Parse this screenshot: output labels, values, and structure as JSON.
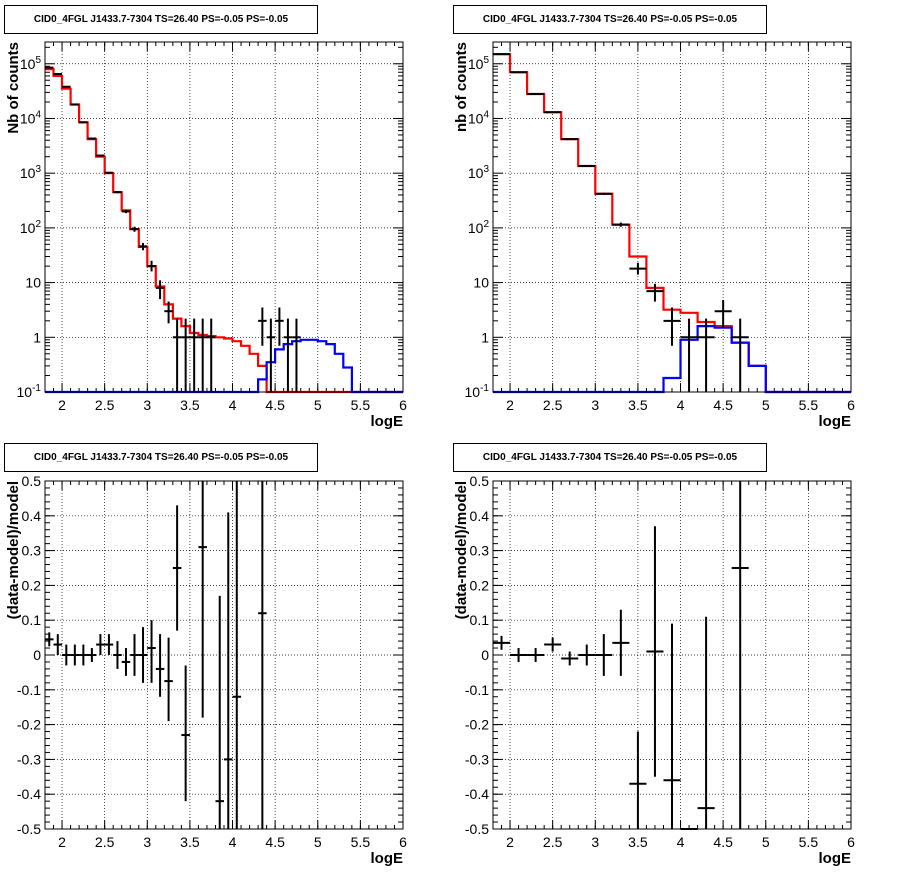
{
  "panel_title": "CID0_4FGL J1433.7-7304 TS=26.40 PS=-0.05 PS=-0.05",
  "colors": {
    "model": "#ff0000",
    "source": "#0000ff",
    "data": "#000000",
    "grid": "#000000"
  },
  "chart_data": [
    {
      "type": "line",
      "title": "CID0_4FGL J1433.7-7304 TS=26.40 PS=-0.05 PS=-0.05",
      "xlabel": "logE",
      "ylabel": "Nb of counts",
      "xlim": [
        1.8,
        6.0
      ],
      "ylim": [
        0.1,
        250000
      ],
      "log_y": true,
      "grid": true,
      "x_ticks": [
        "2",
        "2.5",
        "3",
        "3.5",
        "4",
        "4.5",
        "5",
        "5.5",
        "6"
      ],
      "y_ticks": [
        "10^-1",
        "1",
        "10",
        "10^2",
        "10^3",
        "10^4",
        "10^5"
      ],
      "bin_edges": [
        1.8,
        1.9,
        2.0,
        2.1,
        2.2,
        2.3,
        2.4,
        2.5,
        2.6,
        2.7,
        2.8,
        2.9,
        3.0,
        3.1,
        3.2,
        3.3,
        3.4,
        3.5,
        3.6,
        3.7,
        3.8,
        3.9,
        4.0,
        4.1,
        4.2,
        4.3,
        4.4,
        4.5,
        4.6,
        4.7,
        4.8,
        4.9,
        5.0,
        5.1,
        5.2,
        5.3,
        5.4,
        5.5,
        5.6,
        5.7,
        5.8,
        5.9,
        6.0
      ],
      "series": [
        {
          "name": "model",
          "style": "step",
          "values": [
            80000,
            60000,
            35000,
            18000,
            8500,
            4200,
            2000,
            1000,
            450,
            210,
            95,
            45,
            20,
            8.5,
            4,
            2.2,
            1.6,
            1.2,
            1.1,
            1.05,
            1.0,
            0.95,
            0.85,
            0.7,
            0.5,
            0.3,
            0.1,
            0.1,
            0.1,
            0.1,
            0.1,
            0.1,
            0.1,
            0.1,
            0.1,
            0.1,
            0.1,
            0.1,
            0.1,
            0.1,
            0.1,
            0.1
          ]
        },
        {
          "name": "source",
          "style": "step",
          "values": [
            0.1,
            0.1,
            0.1,
            0.1,
            0.1,
            0.1,
            0.1,
            0.1,
            0.1,
            0.1,
            0.1,
            0.1,
            0.1,
            0.1,
            0.1,
            0.1,
            0.1,
            0.1,
            0.1,
            0.1,
            0.1,
            0.1,
            0.1,
            0.1,
            0.1,
            0.17,
            0.35,
            0.6,
            0.75,
            0.85,
            0.9,
            0.9,
            0.85,
            0.75,
            0.5,
            0.28,
            0.1,
            0.1,
            0.1,
            0.1,
            0.1,
            0.1
          ]
        },
        {
          "name": "data",
          "style": "errorbar",
          "points": [
            {
              "x": 1.85,
              "y": 85000,
              "lo": 84500,
              "hi": 85500
            },
            {
              "x": 1.95,
              "y": 65000,
              "lo": 64500,
              "hi": 65500
            },
            {
              "x": 2.05,
              "y": 38000,
              "lo": 37500,
              "hi": 38500
            },
            {
              "x": 2.15,
              "y": 18000,
              "lo": 17700,
              "hi": 18300
            },
            {
              "x": 2.25,
              "y": 8500,
              "lo": 8300,
              "hi": 8700
            },
            {
              "x": 2.35,
              "y": 4300,
              "lo": 4200,
              "hi": 4400
            },
            {
              "x": 2.45,
              "y": 2100,
              "lo": 2050,
              "hi": 2150
            },
            {
              "x": 2.55,
              "y": 1020,
              "lo": 990,
              "hi": 1050
            },
            {
              "x": 2.65,
              "y": 450,
              "lo": 430,
              "hi": 470
            },
            {
              "x": 2.75,
              "y": 200,
              "lo": 186,
              "hi": 214
            },
            {
              "x": 2.85,
              "y": 95,
              "lo": 85,
              "hi": 105
            },
            {
              "x": 2.95,
              "y": 46,
              "lo": 39,
              "hi": 53
            },
            {
              "x": 3.05,
              "y": 20,
              "lo": 16,
              "hi": 25
            },
            {
              "x": 3.15,
              "y": 8,
              "lo": 5,
              "hi": 11
            },
            {
              "x": 3.25,
              "y": 3,
              "lo": 1.8,
              "hi": 4.5
            },
            {
              "x": 3.35,
              "y": 1,
              "lo": 0.1,
              "hi": 2.2
            },
            {
              "x": 3.45,
              "y": 1,
              "lo": 0.1,
              "hi": 2.2
            },
            {
              "x": 3.55,
              "y": 1,
              "lo": 0.1,
              "hi": 2.2
            },
            {
              "x": 3.65,
              "y": 1,
              "lo": 0.1,
              "hi": 2.2
            },
            {
              "x": 3.75,
              "y": 1,
              "lo": 0.1,
              "hi": 2.2
            },
            {
              "x": 4.35,
              "y": 2,
              "lo": 0.7,
              "hi": 3.5
            },
            {
              "x": 4.45,
              "y": 1,
              "lo": 0.1,
              "hi": 2.2
            },
            {
              "x": 4.55,
              "y": 2,
              "lo": 0.7,
              "hi": 3.5
            },
            {
              "x": 4.65,
              "y": 1,
              "lo": 0.1,
              "hi": 2.2
            },
            {
              "x": 4.75,
              "y": 1,
              "lo": 0.1,
              "hi": 2.2
            }
          ]
        }
      ]
    },
    {
      "type": "line",
      "title": "CID0_4FGL J1433.7-7304 TS=26.40 PS=-0.05 PS=-0.05",
      "xlabel": "logE",
      "ylabel": "nb of counts",
      "xlim": [
        1.8,
        6.0
      ],
      "ylim": [
        0.1,
        250000
      ],
      "log_y": true,
      "grid": true,
      "x_ticks": [
        "2",
        "2.5",
        "3",
        "3.5",
        "4",
        "4.5",
        "5",
        "5.5",
        "6"
      ],
      "y_ticks": [
        "10^-1",
        "1",
        "10",
        "10^2",
        "10^3",
        "10^4",
        "10^5"
      ],
      "bin_edges": [
        1.8,
        2.0,
        2.2,
        2.4,
        2.6,
        2.8,
        3.0,
        3.2,
        3.4,
        3.6,
        3.8,
        4.0,
        4.2,
        4.4,
        4.6,
        4.8,
        5.0,
        5.2,
        5.4,
        5.6,
        5.8,
        6.0
      ],
      "series": [
        {
          "name": "model",
          "style": "step",
          "values": [
            150000,
            70000,
            28000,
            13000,
            4200,
            1350,
            420,
            115,
            30,
            8,
            3.2,
            2.8,
            1.9,
            1.6,
            0.8,
            0.3,
            0.1,
            0.1,
            0.1,
            0.1,
            0.1
          ]
        },
        {
          "name": "source",
          "style": "step",
          "values": [
            0.1,
            0.1,
            0.1,
            0.1,
            0.1,
            0.1,
            0.1,
            0.1,
            0.1,
            0.1,
            0.18,
            0.9,
            1.6,
            1.5,
            0.8,
            0.3,
            0.1,
            0.1,
            0.1,
            0.1,
            0.1
          ]
        },
        {
          "name": "data",
          "style": "errorbar",
          "points": [
            {
              "x": 1.9,
              "y": 150000,
              "lo": 149000,
              "hi": 151000
            },
            {
              "x": 2.1,
              "y": 70000,
              "lo": 69500,
              "hi": 70500
            },
            {
              "x": 2.3,
              "y": 28000,
              "lo": 27700,
              "hi": 28300
            },
            {
              "x": 2.5,
              "y": 13000,
              "lo": 12800,
              "hi": 13200
            },
            {
              "x": 2.7,
              "y": 4200,
              "lo": 4100,
              "hi": 4300
            },
            {
              "x": 2.9,
              "y": 1350,
              "lo": 1310,
              "hi": 1390
            },
            {
              "x": 3.1,
              "y": 420,
              "lo": 400,
              "hi": 440
            },
            {
              "x": 3.3,
              "y": 115,
              "lo": 105,
              "hi": 125
            },
            {
              "x": 3.5,
              "y": 18,
              "lo": 14,
              "hi": 23
            },
            {
              "x": 3.7,
              "y": 7,
              "lo": 4.5,
              "hi": 9.5
            },
            {
              "x": 3.9,
              "y": 2,
              "lo": 0.7,
              "hi": 3.5
            },
            {
              "x": 4.1,
              "y": 1,
              "lo": 0.1,
              "hi": 2.2
            },
            {
              "x": 4.3,
              "y": 1,
              "lo": 0.1,
              "hi": 2.2
            },
            {
              "x": 4.5,
              "y": 3,
              "lo": 1.5,
              "hi": 4.8
            },
            {
              "x": 4.7,
              "y": 1,
              "lo": 0.1,
              "hi": 2.2
            }
          ]
        }
      ]
    },
    {
      "type": "scatter",
      "title": "CID0_4FGL J1433.7-7304 TS=26.40 PS=-0.05 PS=-0.05",
      "xlabel": "logE",
      "ylabel": "(data-model)/model",
      "xlim": [
        1.8,
        6.0
      ],
      "ylim": [
        -0.5,
        0.5
      ],
      "grid": true,
      "x_ticks": [
        "2",
        "2.5",
        "3",
        "3.5",
        "4",
        "4.5",
        "5",
        "5.5",
        "6"
      ],
      "y_ticks": [
        "-0.5",
        "-0.4",
        "-0.3",
        "-0.2",
        "-0.1",
        "0",
        "0.1",
        "0.2",
        "0.3",
        "0.4",
        "0.5"
      ],
      "points": [
        {
          "x": 1.85,
          "y": 0.045,
          "lo": 0.025,
          "hi": 0.065
        },
        {
          "x": 1.95,
          "y": 0.03,
          "lo": 0.0,
          "hi": 0.06
        },
        {
          "x": 2.05,
          "y": 0.0,
          "lo": -0.03,
          "hi": 0.03
        },
        {
          "x": 2.15,
          "y": 0.0,
          "lo": -0.03,
          "hi": 0.03
        },
        {
          "x": 2.25,
          "y": 0.0,
          "lo": -0.03,
          "hi": 0.03
        },
        {
          "x": 2.35,
          "y": 0.0,
          "lo": -0.02,
          "hi": 0.02
        },
        {
          "x": 2.45,
          "y": 0.03,
          "lo": 0.0,
          "hi": 0.06
        },
        {
          "x": 2.55,
          "y": 0.03,
          "lo": 0.0,
          "hi": 0.06
        },
        {
          "x": 2.65,
          "y": 0.0,
          "lo": -0.04,
          "hi": 0.04
        },
        {
          "x": 2.75,
          "y": -0.02,
          "lo": -0.06,
          "hi": 0.02
        },
        {
          "x": 2.85,
          "y": 0.0,
          "lo": -0.06,
          "hi": 0.06
        },
        {
          "x": 2.95,
          "y": 0.0,
          "lo": -0.08,
          "hi": 0.08
        },
        {
          "x": 3.05,
          "y": 0.02,
          "lo": -0.08,
          "hi": 0.1
        },
        {
          "x": 3.15,
          "y": -0.04,
          "lo": -0.12,
          "hi": 0.06
        },
        {
          "x": 3.25,
          "y": -0.075,
          "lo": -0.19,
          "hi": 0.05
        },
        {
          "x": 3.35,
          "y": 0.25,
          "lo": 0.07,
          "hi": 0.43
        },
        {
          "x": 3.45,
          "y": -0.23,
          "lo": -0.42,
          "hi": -0.03
        },
        {
          "x": 3.65,
          "y": 0.31,
          "lo": -0.18,
          "hi": 0.5
        },
        {
          "x": 3.85,
          "y": -0.42,
          "lo": -0.5,
          "hi": 0.17
        },
        {
          "x": 3.95,
          "y": -0.3,
          "lo": -0.5,
          "hi": 0.41
        },
        {
          "x": 4.05,
          "y": -0.12,
          "lo": -0.5,
          "hi": 0.5
        },
        {
          "x": 4.35,
          "y": 0.12,
          "lo": -0.5,
          "hi": 0.5
        }
      ]
    },
    {
      "type": "scatter",
      "title": "CID0_4FGL J1433.7-7304 TS=26.40 PS=-0.05 PS=-0.05",
      "xlabel": "logE",
      "ylabel": "(data-model)/model",
      "xlim": [
        1.8,
        6.0
      ],
      "ylim": [
        -0.5,
        0.5
      ],
      "grid": true,
      "x_ticks": [
        "2",
        "2.5",
        "3",
        "3.5",
        "4",
        "4.5",
        "5",
        "5.5",
        "6"
      ],
      "y_ticks": [
        "-0.5",
        "-0.4",
        "-0.3",
        "-0.2",
        "-0.1",
        "0",
        "0.1",
        "0.2",
        "0.3",
        "0.4",
        "0.5"
      ],
      "points": [
        {
          "x": 1.9,
          "y": 0.035,
          "lo": 0.015,
          "hi": 0.055
        },
        {
          "x": 2.1,
          "y": 0.0,
          "lo": -0.02,
          "hi": 0.02
        },
        {
          "x": 2.3,
          "y": 0.0,
          "lo": -0.02,
          "hi": 0.02
        },
        {
          "x": 2.5,
          "y": 0.03,
          "lo": 0.01,
          "hi": 0.05
        },
        {
          "x": 2.7,
          "y": -0.01,
          "lo": -0.03,
          "hi": 0.01
        },
        {
          "x": 2.9,
          "y": 0.0,
          "lo": -0.03,
          "hi": 0.03
        },
        {
          "x": 3.1,
          "y": 0.0,
          "lo": -0.06,
          "hi": 0.06
        },
        {
          "x": 3.3,
          "y": 0.035,
          "lo": -0.06,
          "hi": 0.13
        },
        {
          "x": 3.5,
          "y": -0.37,
          "lo": -0.5,
          "hi": -0.22
        },
        {
          "x": 3.7,
          "y": 0.01,
          "lo": -0.35,
          "hi": 0.37
        },
        {
          "x": 3.9,
          "y": -0.36,
          "lo": -0.5,
          "hi": 0.09
        },
        {
          "x": 4.1,
          "y": -0.5,
          "lo": -0.5,
          "hi": -0.5
        },
        {
          "x": 4.3,
          "y": -0.44,
          "lo": -0.5,
          "hi": 0.11
        },
        {
          "x": 4.7,
          "y": 0.25,
          "lo": -0.5,
          "hi": 0.5
        }
      ]
    }
  ]
}
